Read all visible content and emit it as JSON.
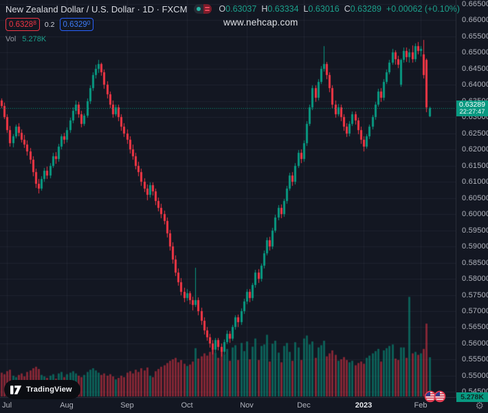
{
  "header": {
    "symbol_title": "New Zealand Dollar / U.S. Dollar · 1D · FXCM",
    "ohlc": {
      "o_key": "O",
      "o": "0.63037",
      "h_key": "H",
      "h": "0.63334",
      "l_key": "L",
      "l": "0.63016",
      "c_key": "C",
      "c": "0.63289",
      "change": "+0.00062 (+0.10%)"
    },
    "bid": {
      "main": "0.6328",
      "sup": "8"
    },
    "spread": "0.2",
    "ask": {
      "main": "0.6329",
      "sup": "0"
    },
    "vol_key": "Vol",
    "vol_value": "5.278K"
  },
  "watermark": "www.nehcap.com",
  "price_axis": {
    "tick_labels": [
      "0.66500",
      "0.66000",
      "0.65500",
      "0.65000",
      "0.64500",
      "0.64000",
      "0.63500",
      "0.63000",
      "0.62500",
      "0.62000",
      "0.61500",
      "0.61000",
      "0.60500",
      "0.60000",
      "0.59500",
      "0.59000",
      "0.58500",
      "0.58000",
      "0.57500",
      "0.57000",
      "0.56500",
      "0.56000",
      "0.55500",
      "0.55000",
      "0.54500"
    ],
    "last_price_label": "0.63289",
    "countdown": "22:27:47",
    "volume_label": "5.278K"
  },
  "branding": {
    "logo_text": "TradingView"
  },
  "icons": {
    "settings": "⚙"
  },
  "colors": {
    "background": "#131722",
    "grid": "rgba(240,243,250,0.055)",
    "up": "#089981",
    "down": "#f23645",
    "vol_up": "rgba(8,153,129,0.55)",
    "vol_down": "rgba(242,54,69,0.50)",
    "last_price_line": "#089981",
    "bid": "#f23645",
    "ask": "#2962ff",
    "axis_text": "#b2b5be"
  },
  "chart_data": {
    "type": "candlestick+volume",
    "symbol": "NZDUSD",
    "timeframe": "1D",
    "legend_note": "columns per candle: [open, high, low, close, volume_K]",
    "ylim": [
      0.545,
      0.665
    ],
    "price_tick_step": 0.005,
    "last_price": 0.63289,
    "month_ticks": [
      {
        "label": "Jul",
        "i": 2
      },
      {
        "label": "Aug",
        "i": 23
      },
      {
        "label": "Sep",
        "i": 44
      },
      {
        "label": "Oct",
        "i": 65
      },
      {
        "label": "Nov",
        "i": 86
      },
      {
        "label": "Dec",
        "i": 106
      },
      {
        "label": "2023",
        "i": 127,
        "year": true
      },
      {
        "label": "Feb",
        "i": 147
      }
    ],
    "candles": [
      [
        0.6352,
        0.6358,
        0.6328,
        0.6335,
        3.2
      ],
      [
        0.6335,
        0.6345,
        0.6295,
        0.63,
        3.0
      ],
      [
        0.63,
        0.631,
        0.6252,
        0.626,
        3.4
      ],
      [
        0.626,
        0.6272,
        0.621,
        0.622,
        3.6
      ],
      [
        0.622,
        0.6248,
        0.6208,
        0.6242,
        2.8
      ],
      [
        0.6242,
        0.6278,
        0.6235,
        0.627,
        2.6
      ],
      [
        0.627,
        0.6282,
        0.624,
        0.6252,
        2.9
      ],
      [
        0.6252,
        0.6262,
        0.6222,
        0.623,
        3.1
      ],
      [
        0.623,
        0.6245,
        0.6205,
        0.6215,
        2.7
      ],
      [
        0.6215,
        0.6228,
        0.6182,
        0.6195,
        3.3
      ],
      [
        0.6195,
        0.6205,
        0.6155,
        0.6168,
        3.5
      ],
      [
        0.6168,
        0.618,
        0.6118,
        0.613,
        3.8
      ],
      [
        0.613,
        0.614,
        0.6082,
        0.6095,
        4.0
      ],
      [
        0.6095,
        0.611,
        0.6065,
        0.608,
        3.7
      ],
      [
        0.608,
        0.6118,
        0.6072,
        0.611,
        2.9
      ],
      [
        0.611,
        0.6142,
        0.61,
        0.6135,
        2.7
      ],
      [
        0.6135,
        0.6148,
        0.6108,
        0.612,
        2.5
      ],
      [
        0.612,
        0.6158,
        0.6112,
        0.615,
        2.8
      ],
      [
        0.615,
        0.619,
        0.6142,
        0.618,
        3.0
      ],
      [
        0.618,
        0.6192,
        0.6155,
        0.617,
        2.4
      ],
      [
        0.617,
        0.6218,
        0.6162,
        0.621,
        3.1
      ],
      [
        0.621,
        0.6248,
        0.62,
        0.624,
        3.3
      ],
      [
        0.624,
        0.6252,
        0.6218,
        0.623,
        2.6
      ],
      [
        0.623,
        0.6268,
        0.6222,
        0.626,
        3.0
      ],
      [
        0.626,
        0.6298,
        0.6252,
        0.629,
        3.2
      ],
      [
        0.629,
        0.633,
        0.6282,
        0.632,
        3.4
      ],
      [
        0.632,
        0.6352,
        0.631,
        0.634,
        3.1
      ],
      [
        0.634,
        0.6348,
        0.6298,
        0.631,
        2.8
      ],
      [
        0.631,
        0.632,
        0.6268,
        0.628,
        2.6
      ],
      [
        0.628,
        0.6312,
        0.6272,
        0.6305,
        2.9
      ],
      [
        0.6305,
        0.6358,
        0.6298,
        0.635,
        3.3
      ],
      [
        0.635,
        0.6398,
        0.6342,
        0.639,
        3.6
      ],
      [
        0.639,
        0.644,
        0.6382,
        0.643,
        3.8
      ],
      [
        0.643,
        0.6462,
        0.642,
        0.645,
        3.5
      ],
      [
        0.645,
        0.6478,
        0.6438,
        0.6465,
        3.2
      ],
      [
        0.6465,
        0.647,
        0.6428,
        0.644,
        2.9
      ],
      [
        0.644,
        0.6448,
        0.6388,
        0.64,
        3.1
      ],
      [
        0.64,
        0.6412,
        0.6358,
        0.637,
        2.8
      ],
      [
        0.637,
        0.638,
        0.6328,
        0.634,
        3.0
      ],
      [
        0.634,
        0.6352,
        0.6298,
        0.631,
        2.7
      ],
      [
        0.631,
        0.6338,
        0.6302,
        0.633,
        2.3
      ],
      [
        0.633,
        0.634,
        0.6288,
        0.63,
        2.5
      ],
      [
        0.63,
        0.631,
        0.6258,
        0.627,
        2.8
      ],
      [
        0.627,
        0.6282,
        0.6238,
        0.625,
        2.6
      ],
      [
        0.625,
        0.6262,
        0.6218,
        0.623,
        3.2
      ],
      [
        0.623,
        0.6242,
        0.6188,
        0.62,
        3.4
      ],
      [
        0.62,
        0.6215,
        0.6168,
        0.618,
        3.1
      ],
      [
        0.618,
        0.619,
        0.6138,
        0.615,
        3.6
      ],
      [
        0.615,
        0.6162,
        0.6118,
        0.613,
        3.3
      ],
      [
        0.613,
        0.614,
        0.6088,
        0.61,
        3.8
      ],
      [
        0.61,
        0.6112,
        0.6068,
        0.608,
        3.5
      ],
      [
        0.608,
        0.6092,
        0.6042,
        0.606,
        3.9
      ],
      [
        0.606,
        0.6098,
        0.6052,
        0.609,
        2.8
      ],
      [
        0.609,
        0.6098,
        0.6058,
        0.607,
        2.6
      ],
      [
        0.607,
        0.608,
        0.6028,
        0.604,
        3.4
      ],
      [
        0.604,
        0.6052,
        0.6008,
        0.602,
        3.7
      ],
      [
        0.602,
        0.6032,
        0.5988,
        0.6,
        4.0
      ],
      [
        0.6,
        0.6012,
        0.5968,
        0.598,
        4.2
      ],
      [
        0.598,
        0.599,
        0.5928,
        0.594,
        4.5
      ],
      [
        0.594,
        0.5952,
        0.5888,
        0.59,
        4.8
      ],
      [
        0.59,
        0.5912,
        0.5848,
        0.586,
        5.0
      ],
      [
        0.586,
        0.5872,
        0.5808,
        0.582,
        5.2
      ],
      [
        0.582,
        0.5832,
        0.5778,
        0.579,
        4.6
      ],
      [
        0.579,
        0.5802,
        0.5748,
        0.576,
        4.9
      ],
      [
        0.576,
        0.5772,
        0.5728,
        0.574,
        4.4
      ],
      [
        0.574,
        0.5768,
        0.5732,
        0.5755,
        4.1
      ],
      [
        0.5755,
        0.5762,
        0.5722,
        0.5735,
        4.3
      ],
      [
        0.5735,
        0.5745,
        0.5702,
        0.572,
        4.7
      ],
      [
        0.572,
        0.5835,
        0.5712,
        0.5735,
        6.5
      ],
      [
        0.5735,
        0.5742,
        0.5688,
        0.57,
        5.1
      ],
      [
        0.57,
        0.571,
        0.5658,
        0.567,
        5.4
      ],
      [
        0.567,
        0.568,
        0.5628,
        0.564,
        5.8
      ],
      [
        0.564,
        0.5652,
        0.5608,
        0.562,
        5.5
      ],
      [
        0.562,
        0.563,
        0.5588,
        0.56,
        6.0
      ],
      [
        0.56,
        0.561,
        0.5565,
        0.558,
        6.8
      ],
      [
        0.558,
        0.5618,
        0.5572,
        0.561,
        5.9
      ],
      [
        0.561,
        0.5618,
        0.5578,
        0.559,
        5.2
      ],
      [
        0.559,
        0.56,
        0.556,
        0.5575,
        6.2
      ],
      [
        0.5575,
        0.5612,
        0.5568,
        0.5605,
        5.7
      ],
      [
        0.5605,
        0.564,
        0.5598,
        0.563,
        6.4
      ],
      [
        0.563,
        0.5638,
        0.5602,
        0.5615,
        4.8
      ],
      [
        0.5615,
        0.5658,
        0.5608,
        0.565,
        6.6
      ],
      [
        0.565,
        0.5688,
        0.5642,
        0.568,
        6.9
      ],
      [
        0.568,
        0.569,
        0.5652,
        0.5665,
        4.9
      ],
      [
        0.5665,
        0.5708,
        0.5658,
        0.57,
        7.2
      ],
      [
        0.57,
        0.5738,
        0.5692,
        0.573,
        6.1
      ],
      [
        0.573,
        0.5768,
        0.5722,
        0.576,
        7.4
      ],
      [
        0.576,
        0.5768,
        0.5728,
        0.574,
        5.0
      ],
      [
        0.574,
        0.5788,
        0.5732,
        0.578,
        6.7
      ],
      [
        0.578,
        0.5828,
        0.5772,
        0.582,
        7.8
      ],
      [
        0.582,
        0.583,
        0.5788,
        0.58,
        4.9
      ],
      [
        0.58,
        0.5848,
        0.5792,
        0.584,
        6.8
      ],
      [
        0.584,
        0.5888,
        0.5832,
        0.588,
        7.0
      ],
      [
        0.588,
        0.5928,
        0.5872,
        0.592,
        8.3
      ],
      [
        0.592,
        0.593,
        0.5888,
        0.59,
        4.7
      ],
      [
        0.59,
        0.5958,
        0.5892,
        0.595,
        7.1
      ],
      [
        0.595,
        0.5998,
        0.5942,
        0.599,
        7.5
      ],
      [
        0.599,
        0.6028,
        0.5982,
        0.602,
        5.9
      ],
      [
        0.602,
        0.603,
        0.5988,
        0.6,
        4.6
      ],
      [
        0.6,
        0.6048,
        0.5992,
        0.604,
        6.8
      ],
      [
        0.604,
        0.6088,
        0.6032,
        0.608,
        7.2
      ],
      [
        0.608,
        0.6128,
        0.6072,
        0.612,
        6.0
      ],
      [
        0.612,
        0.613,
        0.6088,
        0.61,
        4.8
      ],
      [
        0.61,
        0.6158,
        0.6092,
        0.615,
        7.3
      ],
      [
        0.615,
        0.6198,
        0.6142,
        0.619,
        6.6
      ],
      [
        0.619,
        0.62,
        0.6158,
        0.617,
        4.9
      ],
      [
        0.617,
        0.6228,
        0.6162,
        0.622,
        7.8
      ],
      [
        0.622,
        0.6288,
        0.6212,
        0.628,
        8.2
      ],
      [
        0.628,
        0.6338,
        0.6272,
        0.633,
        7.0
      ],
      [
        0.633,
        0.6398,
        0.6322,
        0.639,
        7.4
      ],
      [
        0.639,
        0.6398,
        0.6348,
        0.636,
        5.2
      ],
      [
        0.636,
        0.6418,
        0.6352,
        0.641,
        6.6
      ],
      [
        0.641,
        0.6458,
        0.6402,
        0.645,
        6.9
      ],
      [
        0.645,
        0.6521,
        0.6442,
        0.6465,
        7.5
      ],
      [
        0.6465,
        0.6472,
        0.6418,
        0.643,
        5.4
      ],
      [
        0.643,
        0.644,
        0.6378,
        0.639,
        5.8
      ],
      [
        0.639,
        0.6398,
        0.6328,
        0.634,
        6.2
      ],
      [
        0.634,
        0.6352,
        0.6298,
        0.631,
        5.6
      ],
      [
        0.631,
        0.6342,
        0.6302,
        0.633,
        4.8
      ],
      [
        0.633,
        0.6338,
        0.6288,
        0.63,
        5.0
      ],
      [
        0.63,
        0.631,
        0.6258,
        0.627,
        5.3
      ],
      [
        0.627,
        0.6282,
        0.6238,
        0.625,
        4.9
      ],
      [
        0.625,
        0.6288,
        0.6242,
        0.628,
        4.6
      ],
      [
        0.628,
        0.6318,
        0.6272,
        0.631,
        4.8
      ],
      [
        0.631,
        0.6318,
        0.6278,
        0.629,
        4.2
      ],
      [
        0.629,
        0.6298,
        0.6248,
        0.626,
        4.5
      ],
      [
        0.626,
        0.627,
        0.6218,
        0.623,
        4.7
      ],
      [
        0.623,
        0.6242,
        0.6195,
        0.621,
        4.4
      ],
      [
        0.621,
        0.6248,
        0.6202,
        0.624,
        5.2
      ],
      [
        0.624,
        0.6278,
        0.6232,
        0.627,
        5.5
      ],
      [
        0.627,
        0.6308,
        0.6262,
        0.63,
        5.8
      ],
      [
        0.63,
        0.6348,
        0.6292,
        0.634,
        6.1
      ],
      [
        0.634,
        0.6388,
        0.6332,
        0.638,
        6.4
      ],
      [
        0.638,
        0.639,
        0.6348,
        0.636,
        4.7
      ],
      [
        0.636,
        0.6418,
        0.6352,
        0.641,
        6.2
      ],
      [
        0.641,
        0.6448,
        0.6402,
        0.644,
        6.5
      ],
      [
        0.644,
        0.6478,
        0.6432,
        0.647,
        6.8
      ],
      [
        0.647,
        0.6512,
        0.6462,
        0.65,
        7.0
      ],
      [
        0.65,
        0.6508,
        0.6462,
        0.648,
        5.1
      ],
      [
        0.648,
        0.649,
        0.6452,
        0.6462,
        4.9
      ],
      [
        0.64,
        0.6482,
        0.6395,
        0.6478,
        6.6
      ],
      [
        0.6478,
        0.6515,
        0.647,
        0.6505,
        6.6
      ],
      [
        0.6505,
        0.6515,
        0.6472,
        0.6485,
        5.2
      ],
      [
        0.6485,
        0.6512,
        0.647,
        0.65,
        13.4
      ],
      [
        0.65,
        0.6522,
        0.6468,
        0.648,
        5.8
      ],
      [
        0.648,
        0.6528,
        0.6472,
        0.652,
        6.0
      ],
      [
        0.652,
        0.6532,
        0.6495,
        0.6505,
        5.6
      ],
      [
        0.6505,
        0.652,
        0.6488,
        0.6512,
        5.8
      ],
      [
        0.6495,
        0.654,
        0.642,
        0.643,
        6.4
      ],
      [
        0.6478,
        0.6482,
        0.6315,
        0.633,
        9.8
      ],
      [
        0.63037,
        0.63334,
        0.63016,
        0.63289,
        5.278
      ]
    ]
  }
}
